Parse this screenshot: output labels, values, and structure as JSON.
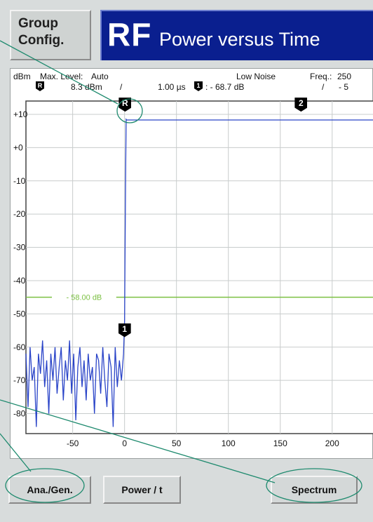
{
  "header": {
    "group_config_line1": "Group",
    "group_config_line2": "Config.",
    "title_main": "RF",
    "title_sub": "Power versus Time"
  },
  "readout": {
    "unit": "dBm",
    "max_level_label": "Max. Level:",
    "max_level_value": "Auto",
    "mode": "Low Noise",
    "freq_label": "Freq.:",
    "freq_value": "250",
    "ref_marker_label": "R",
    "ref_value": "8.3 dBm",
    "sep1": "/",
    "time_value": "1.00 µs",
    "delta_marker_label": "1",
    "delta_value": ": - 68.7 dB",
    "sep2": "/",
    "delta_value2": "- 5"
  },
  "markers": {
    "ref": "R",
    "m1": "1",
    "m2": "2"
  },
  "limit_line_label": "- 58.00 dB",
  "softkeys": {
    "ana_gen": "Ana./Gen.",
    "power_t": "Power / t",
    "spectrum": "Spectrum"
  },
  "colors": {
    "title_bg": "#0a1f8f",
    "trace": "#2a44c8",
    "limit": "#7cc043",
    "grid": "#c8cccc",
    "callout": "#1e8a6e"
  },
  "chart_data": {
    "type": "line",
    "ylabel": "dBm",
    "y_ticks": [
      "+10",
      "+0",
      "-10",
      "-20",
      "-30",
      "-40",
      "-50",
      "-60",
      "-70",
      "-80"
    ],
    "x_ticks": [
      "-50",
      "0",
      "50",
      "100",
      "150",
      "200"
    ],
    "xlim": [
      -95,
      240
    ],
    "ylim": [
      -86,
      14
    ],
    "limit_line": -45,
    "grid": true,
    "series": [
      {
        "values_note_free": true,
        "x": [
          -95,
          -93,
          -91,
          -89,
          -87,
          -85,
          -83,
          -81,
          -79,
          -77,
          -75,
          -73,
          -71,
          -69,
          -67,
          -65,
          -63,
          -61,
          -59,
          -57,
          -55,
          -53,
          -51,
          -49,
          -47,
          -45,
          -43,
          -41,
          -39,
          -37,
          -35,
          -33,
          -31,
          -29,
          -27,
          -25,
          -23,
          -21,
          -19,
          -17,
          -15,
          -13,
          -11,
          -9,
          -7,
          -5,
          -3,
          -1,
          0,
          0.5,
          1,
          1.5,
          2,
          4,
          240
        ],
        "y": [
          -62,
          -78,
          -60,
          -70,
          -66,
          -84,
          -62,
          -68,
          -58,
          -72,
          -64,
          -80,
          -62,
          -70,
          -60,
          -74,
          -66,
          -60,
          -76,
          -64,
          -70,
          -58,
          -74,
          -62,
          -82,
          -66,
          -60,
          -72,
          -64,
          -76,
          -62,
          -70,
          -66,
          -80,
          -62,
          -64,
          -74,
          -60,
          -70,
          -78,
          -62,
          -66,
          -84,
          -60,
          -72,
          -64,
          -70,
          -62,
          -52,
          -30,
          -10,
          8.5,
          8.3,
          8.3,
          8.3
        ]
      }
    ]
  }
}
